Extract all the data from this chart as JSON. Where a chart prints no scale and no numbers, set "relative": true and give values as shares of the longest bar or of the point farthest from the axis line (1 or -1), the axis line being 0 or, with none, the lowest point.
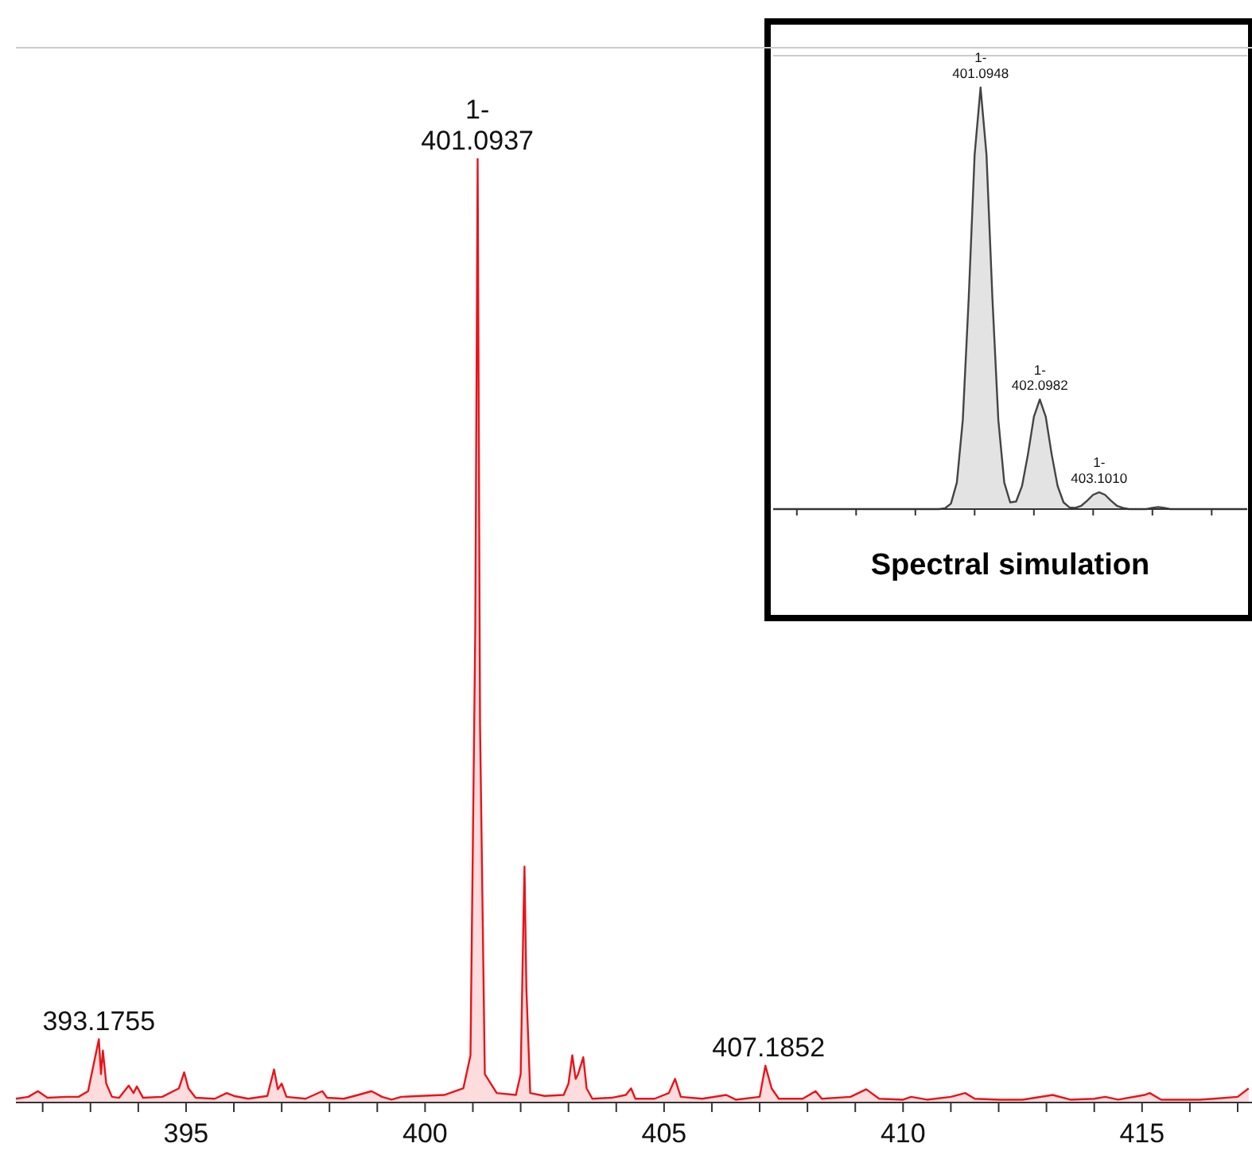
{
  "chart_data": [
    {
      "type": "area",
      "relative": true,
      "tick_labels": "x",
      "xlim": [
        391.44,
        417.3
      ],
      "xticks": [
        {
          "value": 392,
          "label": null
        },
        {
          "value": 393,
          "label": null
        },
        {
          "value": 394,
          "label": null
        },
        395,
        {
          "value": 396,
          "label": null
        },
        {
          "value": 397,
          "label": null
        },
        {
          "value": 398,
          "label": null
        },
        {
          "value": 399,
          "label": null
        },
        400,
        {
          "value": 401,
          "label": null
        },
        {
          "value": 402,
          "label": null
        },
        {
          "value": 403,
          "label": null
        },
        {
          "value": 404,
          "label": null
        },
        405,
        {
          "value": 406,
          "label": null
        },
        {
          "value": 407,
          "label": null
        },
        {
          "value": 408,
          "label": null
        },
        {
          "value": 409,
          "label": null
        },
        410,
        {
          "value": 411,
          "label": null
        },
        {
          "value": 412,
          "label": null
        },
        {
          "value": 413,
          "label": null
        },
        {
          "value": 414,
          "label": null
        },
        415,
        {
          "value": 416,
          "label": null
        },
        {
          "value": 417,
          "label": null
        }
      ],
      "x": [
        391.44,
        391.7,
        391.9,
        392.1,
        392.5,
        392.75,
        392.95,
        393.1755,
        393.22,
        393.26,
        393.33,
        393.45,
        393.6,
        393.8,
        393.9,
        393.97,
        394.1,
        394.5,
        394.85,
        394.96,
        395.05,
        395.2,
        395.6,
        395.85,
        396.0,
        396.3,
        396.7,
        396.84,
        396.92,
        397.0,
        397.1,
        397.5,
        397.85,
        397.95,
        398.3,
        398.6,
        398.88,
        399.1,
        399.3,
        399.5,
        399.9,
        400.4,
        400.8,
        400.95,
        401.05,
        401.1,
        401.15,
        401.25,
        401.5,
        401.9,
        402.0,
        402.06,
        402.08,
        402.12,
        402.2,
        402.5,
        402.9,
        403.0,
        403.08,
        403.15,
        403.2,
        403.31,
        403.38,
        403.5,
        403.9,
        404.2,
        404.31,
        404.4,
        404.8,
        405.1,
        405.23,
        405.35,
        405.8,
        406.3,
        406.5,
        407.0,
        407.12,
        407.25,
        407.4,
        407.9,
        408.17,
        408.3,
        408.9,
        409.23,
        409.5,
        410.0,
        410.17,
        410.5,
        411.0,
        411.3,
        411.5,
        412.0,
        412.5,
        413.13,
        413.5,
        414.0,
        414.23,
        414.5,
        415.05,
        415.16,
        415.4,
        416.2,
        416.5,
        417.0,
        417.23
      ],
      "series": [
        {
          "color": "#e8141b",
          "values": [
            0.004,
            0.006,
            0.012,
            0.005,
            0.006,
            0.006,
            0.012,
            0.067,
            0.03,
            0.055,
            0.02,
            0.006,
            0.005,
            0.018,
            0.01,
            0.017,
            0.005,
            0.006,
            0.015,
            0.032,
            0.015,
            0.005,
            0.004,
            0.01,
            0.007,
            0.004,
            0.007,
            0.035,
            0.014,
            0.02,
            0.006,
            0.004,
            0.012,
            0.005,
            0.004,
            0.008,
            0.012,
            0.006,
            0.003,
            0.006,
            0.007,
            0.008,
            0.015,
            0.05,
            0.5,
            1,
            0.4,
            0.03,
            0.01,
            0.008,
            0.03,
            0.2,
            0.25,
            0.12,
            0.01,
            0.007,
            0.008,
            0.02,
            0.05,
            0.025,
            0.03,
            0.048,
            0.015,
            0.004,
            0.005,
            0.008,
            0.015,
            0.004,
            0.004,
            0.01,
            0.025,
            0.006,
            0.004,
            0.008,
            0.003,
            0.006,
            0.039,
            0.015,
            0.004,
            0.004,
            0.012,
            0.004,
            0.006,
            0.014,
            0.004,
            0.003,
            0.006,
            0.003,
            0.006,
            0.01,
            0.004,
            0.003,
            0.003,
            0.008,
            0.003,
            0.004,
            0.006,
            0.003,
            0.008,
            0.01,
            0.003,
            0.003,
            0.004,
            0.006,
            0.015
          ]
        }
      ],
      "annotations": [
        {
          "text": "1-\n401.0937",
          "x": 401.0937,
          "y": 1
        },
        {
          "text": "393.1755",
          "x": 393.1755,
          "y": 0.067
        },
        {
          "text": "407.1852",
          "x": 407.1852,
          "y": 0.039
        }
      ]
    },
    {
      "type": "area",
      "relative": true,
      "tick_labels": false,
      "title": "Spectral simulation",
      "categories": [
        null,
        null,
        null,
        null,
        null,
        null,
        null,
        null,
        null,
        null,
        null,
        null,
        null,
        null,
        null,
        null,
        null,
        null,
        null,
        null,
        null,
        null,
        null,
        null,
        null,
        null,
        null,
        null,
        null,
        null,
        null,
        null,
        null,
        null,
        null,
        null,
        null,
        null,
        null,
        null,
        null,
        null,
        null,
        null,
        null,
        null,
        null,
        null,
        null,
        null,
        null,
        null,
        null,
        null,
        null,
        null,
        null,
        null,
        null,
        null,
        null,
        null,
        null,
        null,
        null,
        null,
        null,
        null,
        null,
        null,
        null,
        null,
        null,
        null,
        null,
        null,
        null,
        null,
        null,
        null,
        null
      ],
      "series": [
        {
          "color": "#444444",
          "values": [
            0,
            0,
            0,
            0,
            0,
            0,
            0,
            0,
            0,
            0,
            0,
            0,
            0,
            0,
            0,
            0,
            0,
            0,
            0,
            0,
            0,
            0,
            0,
            0,
            0,
            0,
            0,
            0,
            0,
            0.002,
            0.013,
            0.063,
            0.211,
            0.5,
            0.841,
            1,
            0.841,
            0.5,
            0.211,
            0.063,
            0.016,
            0.018,
            0.055,
            0.13,
            0.219,
            0.26,
            0.219,
            0.13,
            0.055,
            0.016,
            0.004,
            0.003,
            0.008,
            0.02,
            0.034,
            0.04,
            0.034,
            0.02,
            0.008,
            0.003,
            0,
            0,
            0,
            0,
            0.003,
            0.005,
            0.003,
            0,
            0,
            0,
            0,
            0,
            0,
            0,
            0,
            0,
            0,
            0,
            0,
            0,
            0
          ]
        }
      ],
      "annotations": [
        {
          "text": "1-\n401.0948",
          "y": 1
        },
        {
          "text": "1-\n402.0982",
          "y": 0.26
        },
        {
          "text": "1-\n403.1010",
          "y": 0.04
        }
      ]
    }
  ]
}
